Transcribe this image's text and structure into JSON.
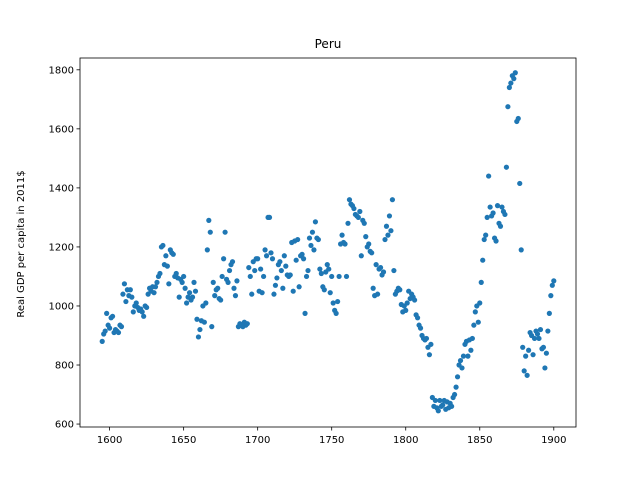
{
  "chart_data": {
    "type": "scatter",
    "title": "Peru",
    "xlabel": "",
    "ylabel": "Real GDP per capita in 2011$",
    "xlim": [
      1580,
      1915
    ],
    "ylim": [
      590,
      1840
    ],
    "xticks": [
      1600,
      1650,
      1700,
      1750,
      1800,
      1850,
      1900
    ],
    "yticks": [
      600,
      800,
      1000,
      1200,
      1400,
      1600,
      1800
    ],
    "grid": false,
    "marker_color": "#1f77b4",
    "series": [
      {
        "points": [
          [
            1595,
            880
          ],
          [
            1596,
            905
          ],
          [
            1597,
            915
          ],
          [
            1598,
            975
          ],
          [
            1599,
            935
          ],
          [
            1600,
            925
          ],
          [
            1601,
            960
          ],
          [
            1602,
            965
          ],
          [
            1603,
            910
          ],
          [
            1604,
            920
          ],
          [
            1605,
            915
          ],
          [
            1606,
            910
          ],
          [
            1607,
            935
          ],
          [
            1608,
            930
          ],
          [
            1609,
            1040
          ],
          [
            1610,
            1075
          ],
          [
            1611,
            1015
          ],
          [
            1612,
            1055
          ],
          [
            1613,
            1035
          ],
          [
            1614,
            1055
          ],
          [
            1615,
            1030
          ],
          [
            1616,
            980
          ],
          [
            1617,
            1000
          ],
          [
            1618,
            1010
          ],
          [
            1619,
            995
          ],
          [
            1620,
            985
          ],
          [
            1621,
            990
          ],
          [
            1622,
            980
          ],
          [
            1623,
            965
          ],
          [
            1624,
            1000
          ],
          [
            1625,
            995
          ],
          [
            1626,
            1040
          ],
          [
            1627,
            1060
          ],
          [
            1628,
            1050
          ],
          [
            1629,
            1065
          ],
          [
            1630,
            1045
          ],
          [
            1631,
            1065
          ],
          [
            1632,
            1080
          ],
          [
            1633,
            1100
          ],
          [
            1634,
            1110
          ],
          [
            1635,
            1200
          ],
          [
            1636,
            1205
          ],
          [
            1637,
            1140
          ],
          [
            1638,
            1170
          ],
          [
            1639,
            1135
          ],
          [
            1640,
            1075
          ],
          [
            1641,
            1190
          ],
          [
            1642,
            1180
          ],
          [
            1643,
            1175
          ],
          [
            1644,
            1100
          ],
          [
            1645,
            1110
          ],
          [
            1646,
            1095
          ],
          [
            1647,
            1030
          ],
          [
            1648,
            1090
          ],
          [
            1649,
            1080
          ],
          [
            1650,
            1100
          ],
          [
            1651,
            1060
          ],
          [
            1652,
            1010
          ],
          [
            1653,
            1030
          ],
          [
            1654,
            1045
          ],
          [
            1655,
            1020
          ],
          [
            1656,
            1030
          ],
          [
            1657,
            1080
          ],
          [
            1658,
            1050
          ],
          [
            1659,
            955
          ],
          [
            1660,
            895
          ],
          [
            1661,
            920
          ],
          [
            1662,
            950
          ],
          [
            1663,
            1000
          ],
          [
            1664,
            945
          ],
          [
            1665,
            1010
          ],
          [
            1666,
            1190
          ],
          [
            1667,
            1290
          ],
          [
            1668,
            1250
          ],
          [
            1669,
            930
          ],
          [
            1670,
            1080
          ],
          [
            1671,
            1035
          ],
          [
            1672,
            1055
          ],
          [
            1673,
            1060
          ],
          [
            1674,
            1025
          ],
          [
            1675,
            1020
          ],
          [
            1676,
            1100
          ],
          [
            1677,
            1160
          ],
          [
            1678,
            1250
          ],
          [
            1679,
            1090
          ],
          [
            1680,
            1080
          ],
          [
            1681,
            1120
          ],
          [
            1682,
            1140
          ],
          [
            1683,
            1150
          ],
          [
            1684,
            1060
          ],
          [
            1685,
            1035
          ],
          [
            1686,
            1085
          ],
          [
            1687,
            930
          ],
          [
            1688,
            940
          ],
          [
            1689,
            935
          ],
          [
            1690,
            930
          ],
          [
            1691,
            945
          ],
          [
            1692,
            935
          ],
          [
            1693,
            940
          ],
          [
            1694,
            1130
          ],
          [
            1695,
            1100
          ],
          [
            1696,
            1040
          ],
          [
            1697,
            1150
          ],
          [
            1698,
            1120
          ],
          [
            1699,
            1160
          ],
          [
            1700,
            1160
          ],
          [
            1701,
            1050
          ],
          [
            1702,
            1125
          ],
          [
            1703,
            1045
          ],
          [
            1704,
            1100
          ],
          [
            1705,
            1190
          ],
          [
            1706,
            1170
          ],
          [
            1707,
            1300
          ],
          [
            1708,
            1300
          ],
          [
            1709,
            1180
          ],
          [
            1710,
            1160
          ],
          [
            1711,
            1040
          ],
          [
            1712,
            1070
          ],
          [
            1713,
            1095
          ],
          [
            1714,
            1140
          ],
          [
            1715,
            1150
          ],
          [
            1716,
            1120
          ],
          [
            1717,
            1060
          ],
          [
            1718,
            1170
          ],
          [
            1719,
            1135
          ],
          [
            1720,
            1105
          ],
          [
            1721,
            1100
          ],
          [
            1722,
            1105
          ],
          [
            1723,
            1215
          ],
          [
            1724,
            1050
          ],
          [
            1725,
            1220
          ],
          [
            1726,
            1155
          ],
          [
            1727,
            1225
          ],
          [
            1728,
            1065
          ],
          [
            1729,
            1170
          ],
          [
            1730,
            1175
          ],
          [
            1731,
            1160
          ],
          [
            1732,
            975
          ],
          [
            1733,
            1100
          ],
          [
            1734,
            1120
          ],
          [
            1735,
            1230
          ],
          [
            1736,
            1205
          ],
          [
            1737,
            1250
          ],
          [
            1738,
            1190
          ],
          [
            1739,
            1285
          ],
          [
            1740,
            1230
          ],
          [
            1741,
            1225
          ],
          [
            1742,
            1125
          ],
          [
            1743,
            1110
          ],
          [
            1744,
            1065
          ],
          [
            1745,
            1055
          ],
          [
            1746,
            1115
          ],
          [
            1747,
            1140
          ],
          [
            1748,
            1125
          ],
          [
            1749,
            1045
          ],
          [
            1750,
            1100
          ],
          [
            1751,
            1010
          ],
          [
            1752,
            985
          ],
          [
            1753,
            975
          ],
          [
            1754,
            1015
          ],
          [
            1755,
            1100
          ],
          [
            1756,
            1210
          ],
          [
            1757,
            1240
          ],
          [
            1758,
            1215
          ],
          [
            1759,
            1210
          ],
          [
            1760,
            1100
          ],
          [
            1761,
            1280
          ],
          [
            1762,
            1360
          ],
          [
            1763,
            1345
          ],
          [
            1764,
            1340
          ],
          [
            1765,
            1330
          ],
          [
            1766,
            1310
          ],
          [
            1767,
            1305
          ],
          [
            1768,
            1300
          ],
          [
            1769,
            1320
          ],
          [
            1770,
            1170
          ],
          [
            1771,
            1290
          ],
          [
            1772,
            1280
          ],
          [
            1773,
            1235
          ],
          [
            1774,
            1200
          ],
          [
            1775,
            1210
          ],
          [
            1776,
            1185
          ],
          [
            1777,
            1180
          ],
          [
            1778,
            1060
          ],
          [
            1779,
            1035
          ],
          [
            1780,
            1140
          ],
          [
            1781,
            1040
          ],
          [
            1782,
            1125
          ],
          [
            1783,
            1130
          ],
          [
            1784,
            1105
          ],
          [
            1785,
            1115
          ],
          [
            1786,
            1225
          ],
          [
            1787,
            1270
          ],
          [
            1788,
            1240
          ],
          [
            1789,
            1305
          ],
          [
            1790,
            1255
          ],
          [
            1791,
            1360
          ],
          [
            1792,
            1120
          ],
          [
            1793,
            1040
          ],
          [
            1794,
            1050
          ],
          [
            1795,
            1060
          ],
          [
            1796,
            1055
          ],
          [
            1797,
            1005
          ],
          [
            1798,
            980
          ],
          [
            1799,
            1000
          ],
          [
            1800,
            985
          ],
          [
            1801,
            1010
          ],
          [
            1802,
            1050
          ],
          [
            1803,
            1025
          ],
          [
            1804,
            1040
          ],
          [
            1805,
            1030
          ],
          [
            1806,
            1020
          ],
          [
            1807,
            970
          ],
          [
            1808,
            960
          ],
          [
            1809,
            935
          ],
          [
            1810,
            925
          ],
          [
            1811,
            900
          ],
          [
            1812,
            890
          ],
          [
            1813,
            885
          ],
          [
            1814,
            890
          ],
          [
            1815,
            860
          ],
          [
            1816,
            835
          ],
          [
            1817,
            870
          ],
          [
            1818,
            690
          ],
          [
            1819,
            660
          ],
          [
            1820,
            680
          ],
          [
            1821,
            655
          ],
          [
            1822,
            645
          ],
          [
            1823,
            680
          ],
          [
            1824,
            660
          ],
          [
            1825,
            665
          ],
          [
            1826,
            680
          ],
          [
            1827,
            650
          ],
          [
            1828,
            675
          ],
          [
            1829,
            655
          ],
          [
            1830,
            670
          ],
          [
            1831,
            660
          ],
          [
            1832,
            690
          ],
          [
            1833,
            700
          ],
          [
            1834,
            725
          ],
          [
            1835,
            760
          ],
          [
            1836,
            800
          ],
          [
            1837,
            815
          ],
          [
            1838,
            790
          ],
          [
            1839,
            830
          ],
          [
            1840,
            870
          ],
          [
            1841,
            880
          ],
          [
            1842,
            830
          ],
          [
            1843,
            885
          ],
          [
            1844,
            850
          ],
          [
            1845,
            890
          ],
          [
            1846,
            935
          ],
          [
            1847,
            980
          ],
          [
            1848,
            1000
          ],
          [
            1849,
            945
          ],
          [
            1850,
            1010
          ],
          [
            1851,
            1080
          ],
          [
            1852,
            1155
          ],
          [
            1853,
            1225
          ],
          [
            1854,
            1240
          ],
          [
            1855,
            1300
          ],
          [
            1856,
            1440
          ],
          [
            1857,
            1335
          ],
          [
            1858,
            1305
          ],
          [
            1859,
            1315
          ],
          [
            1860,
            1230
          ],
          [
            1861,
            1220
          ],
          [
            1862,
            1340
          ],
          [
            1863,
            1280
          ],
          [
            1864,
            1270
          ],
          [
            1865,
            1335
          ],
          [
            1866,
            1320
          ],
          [
            1867,
            1310
          ],
          [
            1868,
            1470
          ],
          [
            1869,
            1675
          ],
          [
            1870,
            1740
          ],
          [
            1871,
            1755
          ],
          [
            1872,
            1780
          ],
          [
            1873,
            1770
          ],
          [
            1874,
            1790
          ],
          [
            1875,
            1625
          ],
          [
            1876,
            1635
          ],
          [
            1877,
            1415
          ],
          [
            1878,
            1190
          ],
          [
            1879,
            860
          ],
          [
            1880,
            780
          ],
          [
            1881,
            830
          ],
          [
            1882,
            765
          ],
          [
            1883,
            850
          ],
          [
            1884,
            910
          ],
          [
            1885,
            900
          ],
          [
            1886,
            835
          ],
          [
            1887,
            890
          ],
          [
            1888,
            915
          ],
          [
            1889,
            905
          ],
          [
            1890,
            890
          ],
          [
            1891,
            920
          ],
          [
            1892,
            855
          ],
          [
            1893,
            860
          ],
          [
            1894,
            790
          ],
          [
            1895,
            840
          ],
          [
            1896,
            915
          ],
          [
            1897,
            975
          ],
          [
            1898,
            1035
          ],
          [
            1899,
            1070
          ],
          [
            1900,
            1085
          ]
        ]
      }
    ]
  }
}
